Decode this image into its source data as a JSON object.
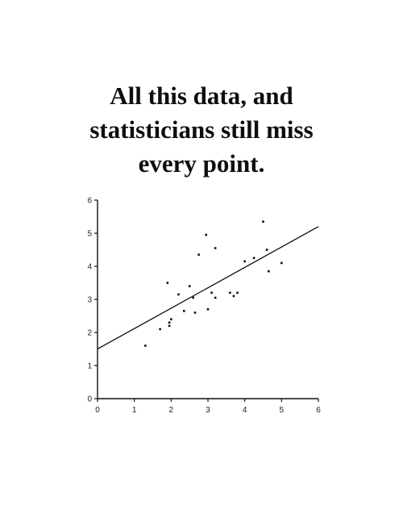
{
  "caption": {
    "line1": "All this data, and",
    "line2": "statisticians still miss",
    "line3": "every point."
  },
  "chart_data": {
    "type": "scatter",
    "title": "All this data, and statisticians still miss every point.",
    "xlabel": "",
    "ylabel": "",
    "xlim": [
      0,
      6
    ],
    "ylim": [
      0,
      6
    ],
    "x_ticks": [
      "0",
      "1",
      "2",
      "3",
      "4",
      "5",
      "6"
    ],
    "y_ticks": [
      "0",
      "1",
      "2",
      "3",
      "4",
      "5",
      "6"
    ],
    "grid": false,
    "points": [
      {
        "x": 1.3,
        "y": 1.6
      },
      {
        "x": 1.7,
        "y": 2.1
      },
      {
        "x": 1.95,
        "y": 2.2
      },
      {
        "x": 1.95,
        "y": 2.3
      },
      {
        "x": 2.0,
        "y": 2.4
      },
      {
        "x": 1.9,
        "y": 3.5
      },
      {
        "x": 2.2,
        "y": 3.15
      },
      {
        "x": 2.35,
        "y": 2.65
      },
      {
        "x": 2.5,
        "y": 3.4
      },
      {
        "x": 2.6,
        "y": 3.05
      },
      {
        "x": 2.65,
        "y": 2.6
      },
      {
        "x": 2.75,
        "y": 4.35
      },
      {
        "x": 2.95,
        "y": 4.95
      },
      {
        "x": 3.0,
        "y": 2.7
      },
      {
        "x": 3.1,
        "y": 3.2
      },
      {
        "x": 3.2,
        "y": 4.55
      },
      {
        "x": 3.2,
        "y": 3.05
      },
      {
        "x": 3.6,
        "y": 3.2
      },
      {
        "x": 3.7,
        "y": 3.1
      },
      {
        "x": 3.8,
        "y": 3.2
      },
      {
        "x": 4.0,
        "y": 4.15
      },
      {
        "x": 4.25,
        "y": 4.25
      },
      {
        "x": 4.5,
        "y": 5.35
      },
      {
        "x": 4.6,
        "y": 4.5
      },
      {
        "x": 4.65,
        "y": 3.85
      },
      {
        "x": 5.0,
        "y": 4.1
      }
    ],
    "fit_line": {
      "x": [
        0,
        6
      ],
      "y": [
        1.5,
        5.2
      ]
    },
    "colors": {
      "ink": "#111111"
    }
  }
}
